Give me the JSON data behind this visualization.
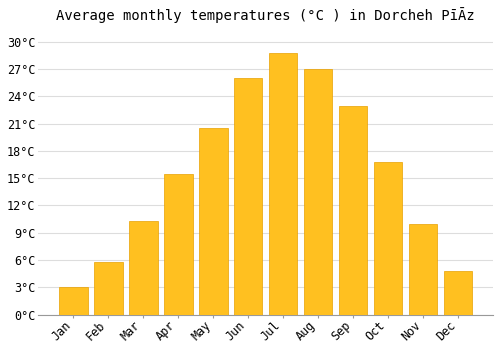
{
  "title": "Average monthly temperatures (°C ) in Dorcheh PīĀz",
  "months": [
    "Jan",
    "Feb",
    "Mar",
    "Apr",
    "May",
    "Jun",
    "Jul",
    "Aug",
    "Sep",
    "Oct",
    "Nov",
    "Dec"
  ],
  "values": [
    3.0,
    5.8,
    10.3,
    15.5,
    20.5,
    26.0,
    28.8,
    27.0,
    23.0,
    16.8,
    10.0,
    4.8
  ],
  "bar_color_top": "#FFC020",
  "bar_color_bottom": "#FFB000",
  "bar_edge_color": "#E8A000",
  "background_color": "#FFFFFF",
  "grid_color": "#DDDDDD",
  "yticks": [
    0,
    3,
    6,
    9,
    12,
    15,
    18,
    21,
    24,
    27,
    30
  ],
  "ylim": [
    0,
    31.5
  ],
  "title_fontsize": 10,
  "tick_fontsize": 8.5,
  "bar_width": 0.82
}
